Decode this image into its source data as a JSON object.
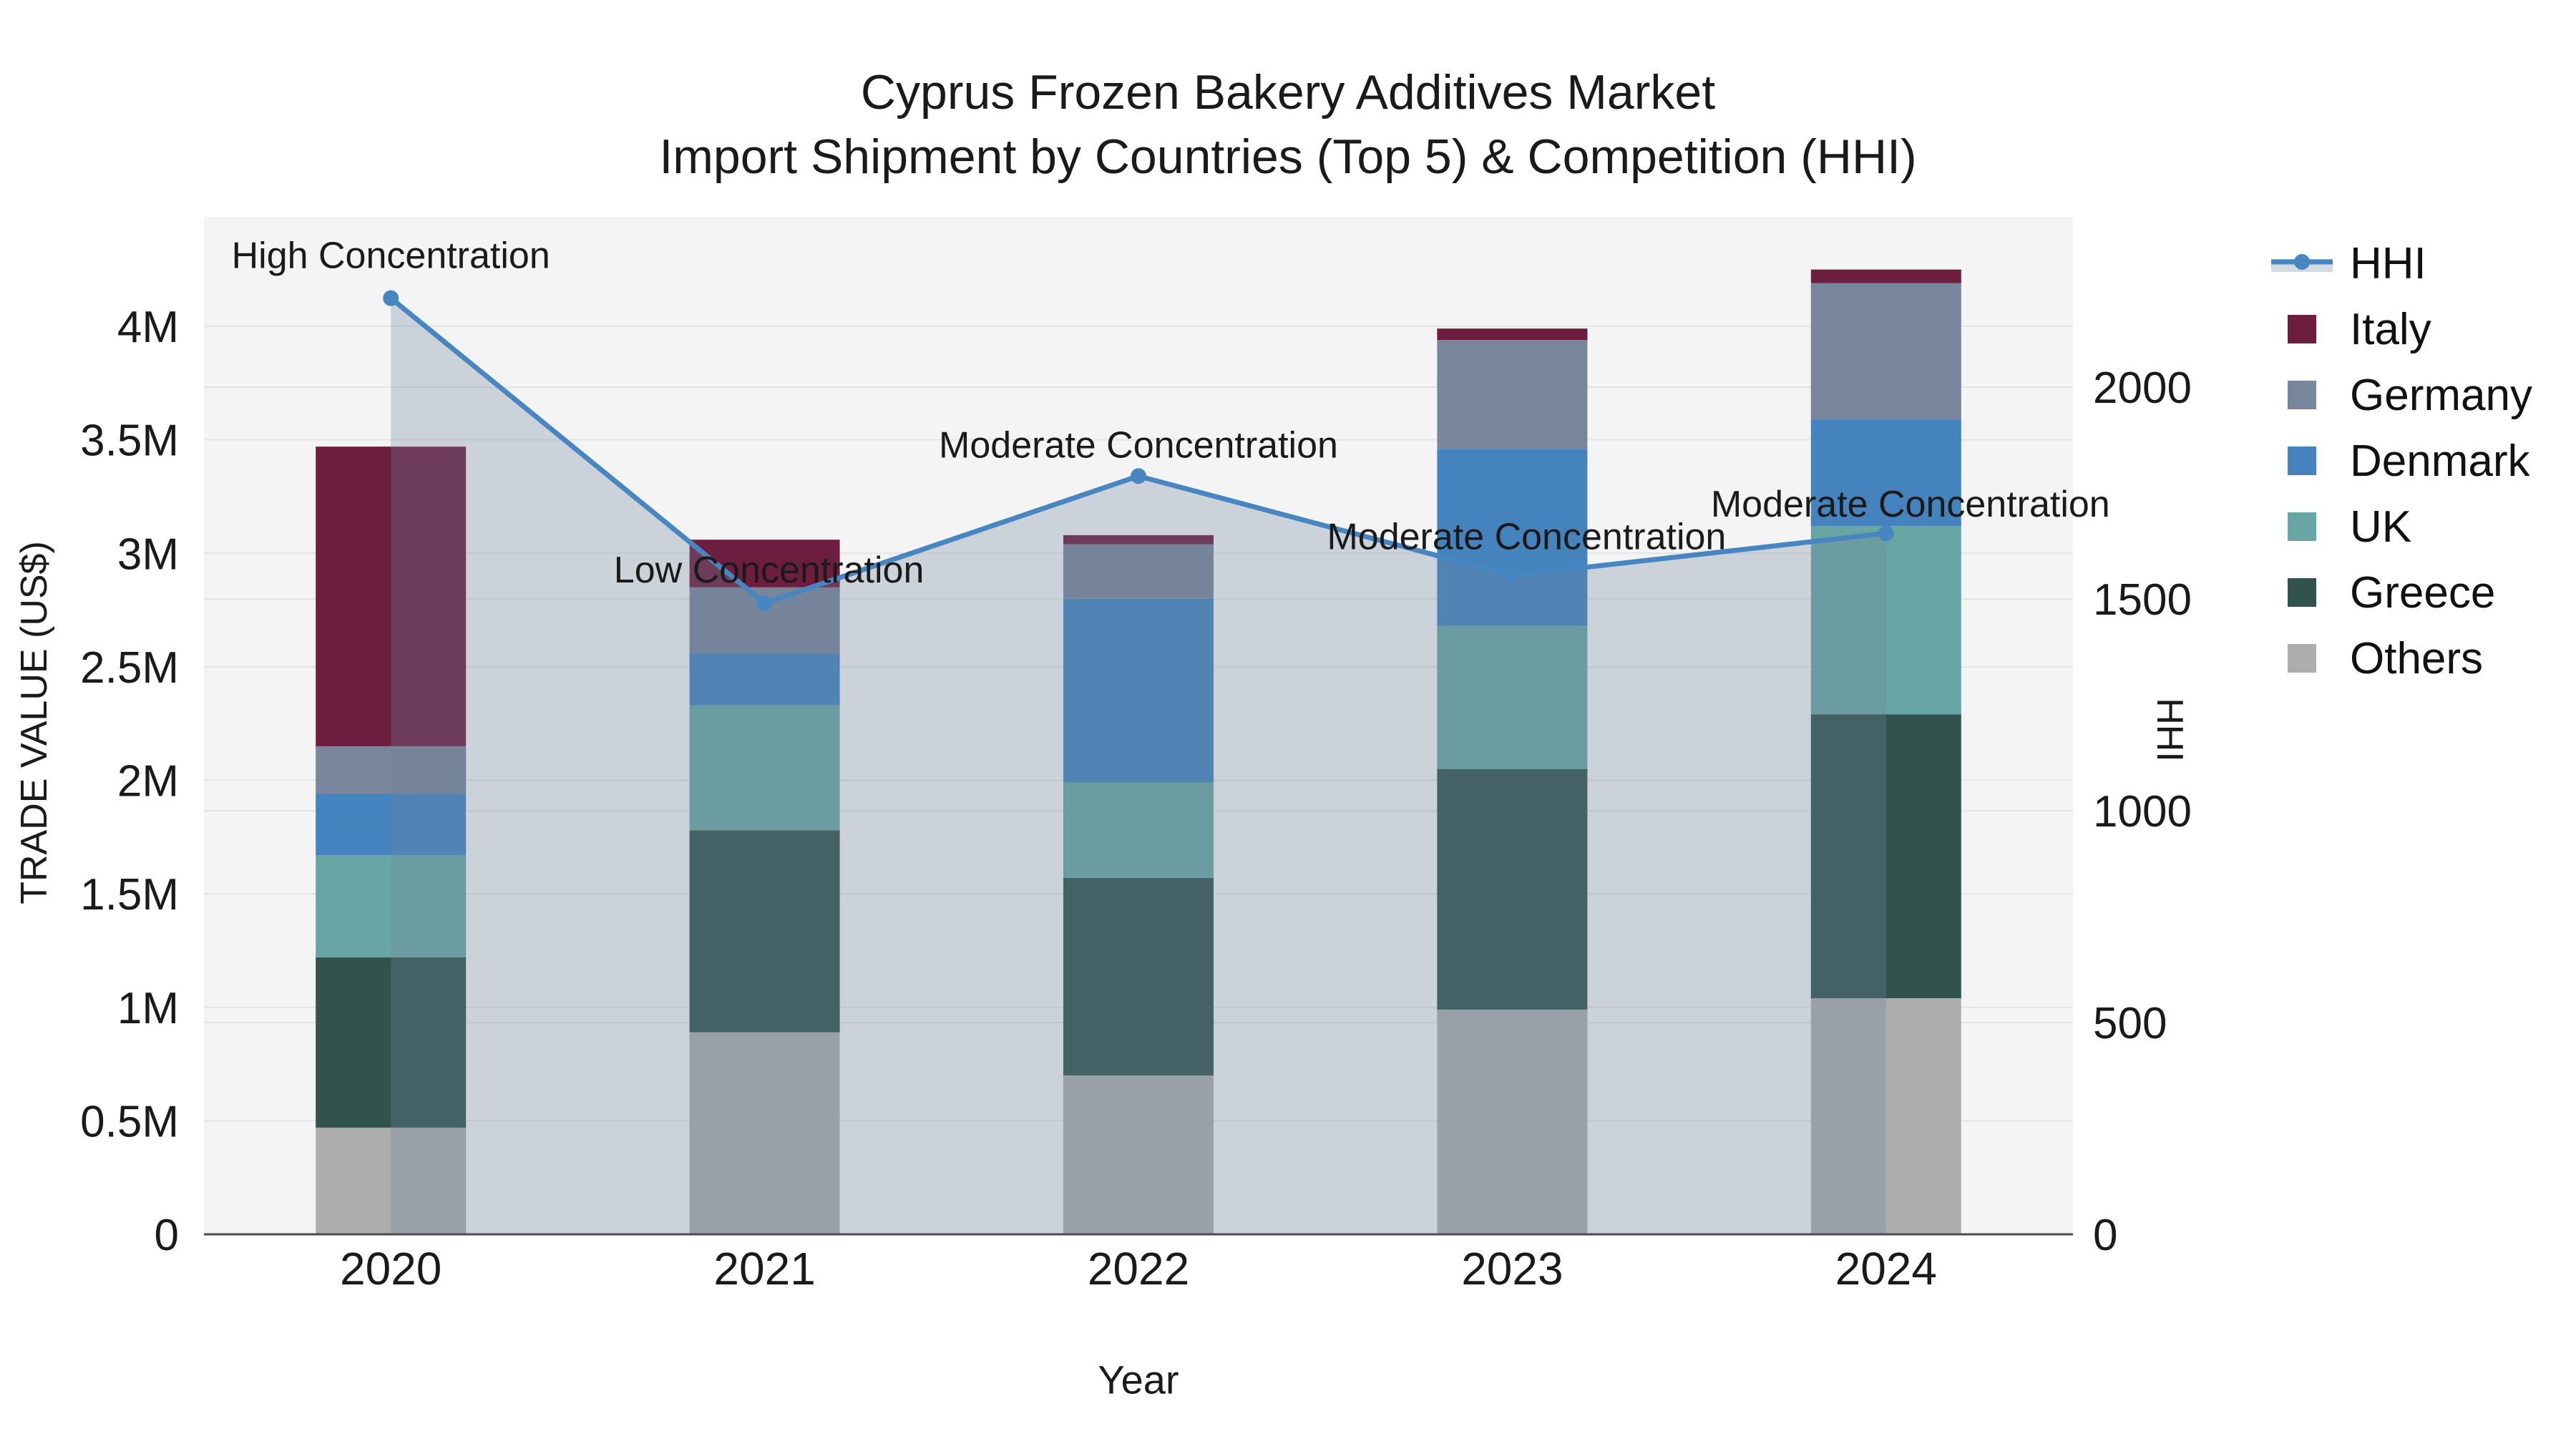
{
  "title": {
    "line1": "Cyprus Frozen Bakery Additives Market",
    "line2": "Import Shipment by Countries (Top 5) & Competition (HHI)"
  },
  "axes": {
    "x": {
      "title": "Year",
      "categories": [
        "2020",
        "2021",
        "2022",
        "2023",
        "2024"
      ]
    },
    "y_left": {
      "title": "TRADE VALUE (US$)",
      "tick_labels": [
        "0",
        "0.5M",
        "1M",
        "1.5M",
        "2M",
        "2.5M",
        "3M",
        "3.5M",
        "4M"
      ],
      "tick_values_musd": [
        0,
        0.5,
        1,
        1.5,
        2,
        2.5,
        3,
        3.5,
        4
      ]
    },
    "y_right": {
      "title": "HHI",
      "tick_labels": [
        "0",
        "500",
        "1000",
        "1500",
        "2000"
      ],
      "tick_values": [
        0,
        500,
        1000,
        1500,
        2000
      ]
    }
  },
  "legend": {
    "position": "right",
    "items": [
      "HHI",
      "Italy",
      "Germany",
      "Denmark",
      "UK",
      "Greece",
      "Others"
    ]
  },
  "chart_data": {
    "type": "bar+line",
    "categories": [
      "2020",
      "2021",
      "2022",
      "2023",
      "2024"
    ],
    "stack_order_bottom_to_top": [
      "Others",
      "Greece",
      "UK",
      "Denmark",
      "Germany",
      "Italy"
    ],
    "bar_series": [
      {
        "name": "Italy",
        "color": "#6D1E3E",
        "values_musd": [
          1.32,
          0.21,
          0.04,
          0.05,
          0.06
        ]
      },
      {
        "name": "Germany",
        "color": "#78859A",
        "values_musd": [
          0.21,
          0.29,
          0.24,
          0.48,
          0.6
        ]
      },
      {
        "name": "Denmark",
        "color": "#4483BE",
        "values_musd": [
          0.27,
          0.23,
          0.81,
          0.78,
          0.47
        ]
      },
      {
        "name": "UK",
        "color": "#67A6A4",
        "values_musd": [
          0.45,
          0.55,
          0.42,
          0.63,
          0.83
        ]
      },
      {
        "name": "Greece",
        "color": "#32524E",
        "values_musd": [
          0.75,
          0.89,
          0.87,
          1.06,
          1.25
        ]
      },
      {
        "name": "Others",
        "color": "#ADADAD",
        "values_musd": [
          0.47,
          0.89,
          0.7,
          0.99,
          1.04
        ]
      }
    ],
    "bar_totals_musd": [
      3.47,
      3.06,
      3.08,
      3.99,
      4.25
    ],
    "line_series": {
      "name": "HHI",
      "color": "#4886C2",
      "values": [
        2210,
        1490,
        1790,
        1555,
        1655
      ],
      "area_fill_under_line": true
    },
    "annotations": [
      {
        "x": "2020",
        "text": "High Concentration"
      },
      {
        "x": "2021",
        "text": "Low Concentration"
      },
      {
        "x": "2022",
        "text": "Moderate Concentration"
      },
      {
        "x": "2023",
        "text": "Moderate Concentration"
      },
      {
        "x": "2024",
        "text": "Moderate Concentration"
      }
    ],
    "xlabel": "Year",
    "ylabel_left": "TRADE VALUE (US$)",
    "ylabel_right": "HHI",
    "ylim_left_musd": [
      0,
      4.49
    ],
    "ylim_right": [
      0,
      2407
    ],
    "grid": "horizontal",
    "legend_position": "right"
  },
  "colors": {
    "hhi_line": "#4886C2",
    "area_fill": "rgba(112,132,158,0.30)",
    "legend_hhi_band": "#D4DAE2",
    "plot_background": "#F4F4F4",
    "page_background": "#FFFFFF",
    "axis_line": "#4D4D4D",
    "gridline": "#E4E4E4",
    "text": "#1A1A1A"
  }
}
